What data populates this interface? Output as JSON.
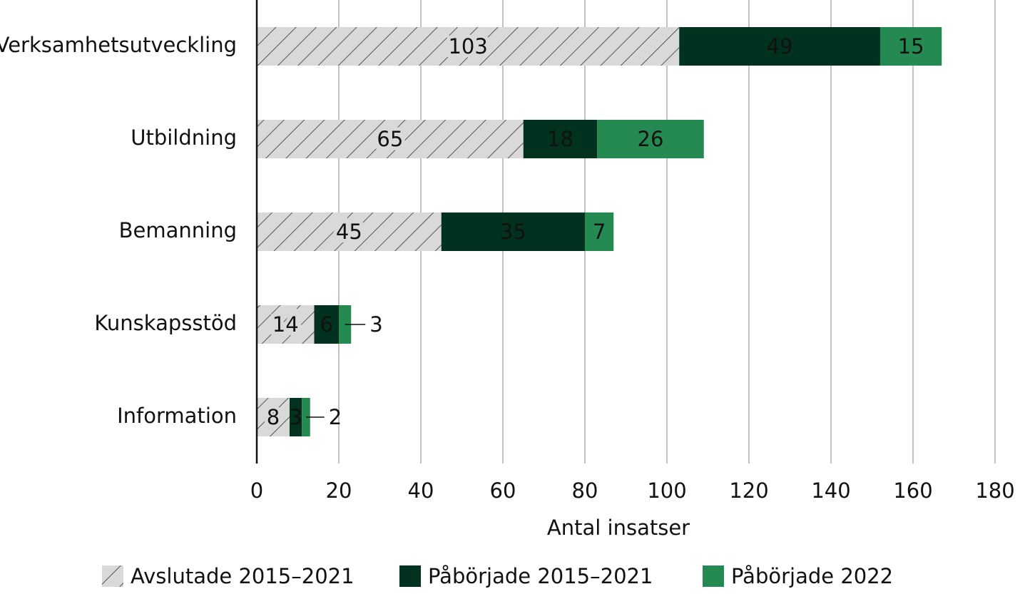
{
  "chart_data": {
    "type": "stacked-barh",
    "categories": [
      "Verksamhetsutveckling",
      "Utbildning",
      "Bemanning",
      "Kunskapsstöd",
      "Information"
    ],
    "series": [
      {
        "name": "Avslutade 2015–2021",
        "color": "#d9d9d9",
        "hatch": true,
        "values": [
          103,
          65,
          45,
          14,
          8
        ]
      },
      {
        "name": "Påbörjade 2015–2021",
        "color": "#00321f",
        "values": [
          49,
          18,
          35,
          6,
          3
        ]
      },
      {
        "name": "Påbörjade 2022",
        "color": "#248a52",
        "values": [
          15,
          26,
          7,
          3,
          2
        ]
      }
    ],
    "x_label": "Antal insatser",
    "xlim": [
      0,
      180
    ],
    "xticks": [
      0,
      20,
      40,
      60,
      80,
      100,
      120,
      140,
      160,
      180
    ],
    "grid": true,
    "legend": "bottom"
  }
}
